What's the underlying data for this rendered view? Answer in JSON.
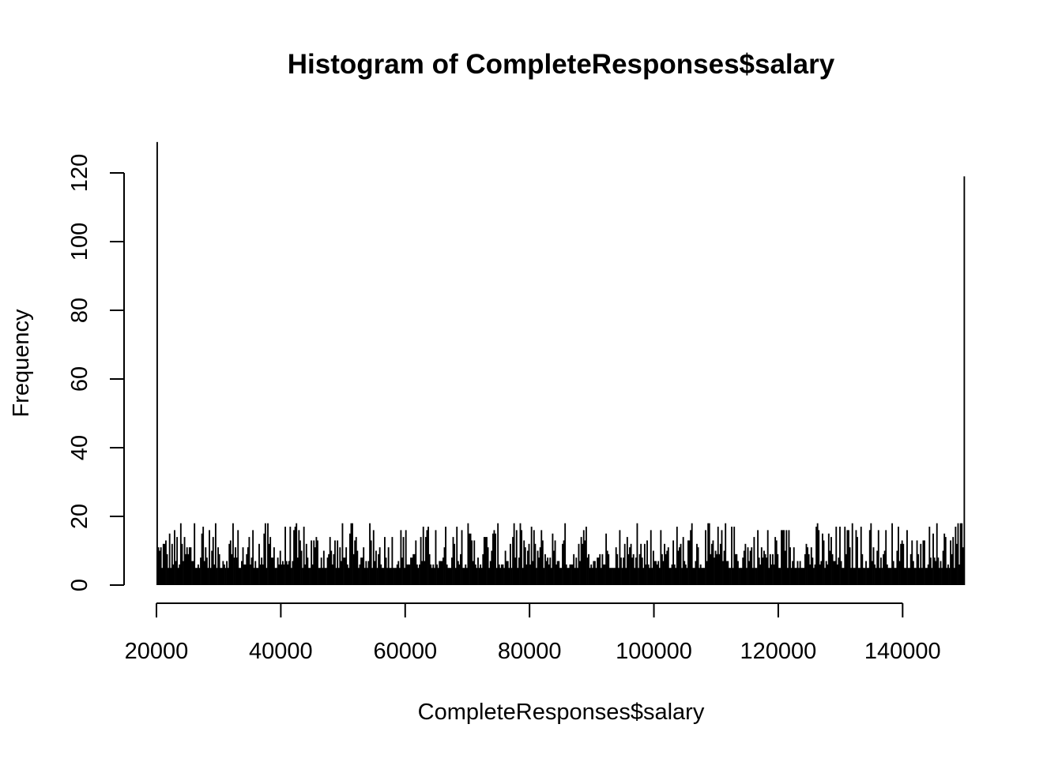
{
  "chart_data": {
    "type": "bar",
    "title": "Histogram of CompleteResponses$salary",
    "xlabel": "CompleteResponses$salary",
    "ylabel": "Frequency",
    "xlim": [
      20000,
      150000
    ],
    "ylim": [
      0,
      120
    ],
    "x_ticks": [
      20000,
      40000,
      60000,
      80000,
      100000,
      120000,
      140000
    ],
    "x_tick_labels": [
      "20000",
      "40000",
      "60000",
      "80000",
      "100000",
      "120000",
      "140000"
    ],
    "y_ticks": [
      0,
      20,
      40,
      60,
      80,
      100,
      120
    ],
    "y_tick_labels": [
      "0",
      "20",
      "40",
      "60",
      "80",
      "100",
      "120"
    ],
    "bin_width": 200,
    "first_bin_value": 129,
    "last_bin_value": 119,
    "typical_bin_range": [
      5,
      18
    ],
    "bar_color": "#000000",
    "grid": false
  }
}
